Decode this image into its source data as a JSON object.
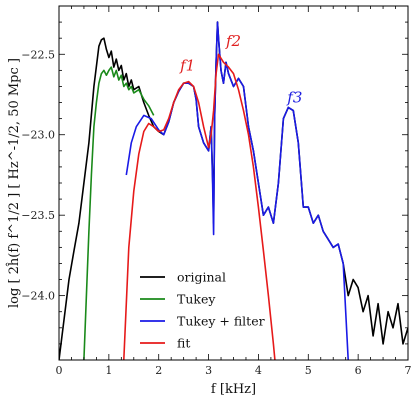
{
  "chart_data": {
    "type": "line",
    "xlabel": "f [kHz]",
    "ylabel": "log [ 2ĥ(f) f^1/2 ] [ Hz^-1/2, 50 Mpc ]",
    "xlim": [
      0,
      7
    ],
    "ylim": [
      -24.4,
      -22.2
    ],
    "xticks": [
      0,
      1,
      2,
      3,
      4,
      5,
      6,
      7
    ],
    "yticks": [
      -24.0,
      -23.5,
      -23.0,
      -22.5
    ],
    "xtick_labels": [
      "0",
      "1",
      "2",
      "3",
      "4",
      "5",
      "6",
      "7"
    ],
    "ytick_labels": [
      "−24.0",
      "−23.5",
      "−23.0",
      "−22.5"
    ],
    "grid": false,
    "legend_position": "bottom-center",
    "annotations": [
      {
        "text": "f1",
        "x": 2.58,
        "y": -22.6,
        "color": "#e02020"
      },
      {
        "text": "f2",
        "x": 3.5,
        "y": -22.45,
        "color": "#e02020"
      },
      {
        "text": "f3",
        "x": 4.73,
        "y": -22.8,
        "color": "#2020e0"
      }
    ],
    "series": [
      {
        "name": "original",
        "color": "#000000",
        "x": [
          0.0,
          0.1,
          0.2,
          0.3,
          0.4,
          0.5,
          0.6,
          0.7,
          0.8,
          0.85,
          0.9,
          0.95,
          1.0,
          1.05,
          1.1,
          1.15,
          1.2,
          1.25,
          1.3,
          1.35,
          1.4,
          1.45,
          1.5,
          1.6,
          1.7,
          1.8,
          1.9,
          2.0,
          2.1,
          2.2,
          2.3,
          2.4,
          2.5,
          2.6,
          2.7,
          2.75,
          2.8,
          2.9,
          3.0,
          3.05,
          3.08,
          3.1,
          3.12,
          3.15,
          3.18,
          3.2,
          3.25,
          3.3,
          3.35,
          3.4,
          3.5,
          3.6,
          3.7,
          3.8,
          3.9,
          4.0,
          4.1,
          4.2,
          4.3,
          4.4,
          4.5,
          4.6,
          4.7,
          4.8,
          4.9,
          5.0,
          5.1,
          5.2,
          5.3,
          5.4,
          5.5,
          5.6,
          5.7,
          5.8,
          5.9,
          6.0,
          6.1,
          6.2,
          6.3,
          6.4,
          6.5,
          6.6,
          6.7,
          6.8,
          6.9,
          7.0
        ],
        "values": [
          -24.4,
          -24.15,
          -23.9,
          -23.72,
          -23.55,
          -23.3,
          -23.05,
          -22.7,
          -22.45,
          -22.41,
          -22.4,
          -22.47,
          -22.52,
          -22.48,
          -22.58,
          -22.53,
          -22.6,
          -22.57,
          -22.66,
          -22.62,
          -22.7,
          -22.66,
          -22.72,
          -22.7,
          -22.8,
          -22.88,
          -22.95,
          -22.98,
          -23.0,
          -22.92,
          -22.8,
          -22.73,
          -22.68,
          -22.68,
          -22.7,
          -22.78,
          -22.95,
          -23.05,
          -23.1,
          -22.95,
          -23.25,
          -23.55,
          -22.9,
          -22.55,
          -22.3,
          -22.4,
          -22.6,
          -22.68,
          -22.55,
          -22.62,
          -22.7,
          -22.65,
          -22.7,
          -22.95,
          -23.1,
          -23.3,
          -23.5,
          -23.45,
          -23.55,
          -23.3,
          -22.9,
          -22.83,
          -22.85,
          -23.05,
          -23.45,
          -23.45,
          -23.55,
          -23.5,
          -23.6,
          -23.65,
          -23.7,
          -23.68,
          -23.8,
          -24.0,
          -23.9,
          -23.95,
          -24.1,
          -24.0,
          -24.25,
          -24.05,
          -24.3,
          -24.1,
          -24.2,
          -24.05,
          -24.3,
          -24.2
        ]
      },
      {
        "name": "Tukey",
        "color": "#1a8a1a",
        "x": [
          0.5,
          0.55,
          0.6,
          0.65,
          0.7,
          0.75,
          0.8,
          0.85,
          0.9,
          0.95,
          1.0,
          1.05,
          1.1,
          1.15,
          1.2,
          1.25,
          1.3,
          1.35,
          1.4,
          1.45,
          1.5,
          1.6,
          1.7,
          1.8,
          1.9
        ],
        "values": [
          -24.4,
          -24.0,
          -23.6,
          -23.25,
          -22.95,
          -22.8,
          -22.68,
          -22.62,
          -22.6,
          -22.63,
          -22.6,
          -22.58,
          -22.64,
          -22.6,
          -22.66,
          -22.63,
          -22.7,
          -22.68,
          -22.72,
          -22.7,
          -22.74,
          -22.72,
          -22.78,
          -22.82,
          -22.88
        ]
      },
      {
        "name": "Tukey + filter",
        "color": "#1a1ae6",
        "x": [
          1.35,
          1.45,
          1.55,
          1.7,
          1.85,
          2.0,
          2.1,
          2.2,
          2.3,
          2.4,
          2.5,
          2.6,
          2.7,
          2.75,
          2.8,
          2.9,
          3.0,
          3.05,
          3.08,
          3.1,
          3.12,
          3.15,
          3.18,
          3.2,
          3.25,
          3.3,
          3.35,
          3.4,
          3.5,
          3.6,
          3.7,
          3.8,
          3.9,
          4.0,
          4.1,
          4.2,
          4.3,
          4.4,
          4.5,
          4.6,
          4.7,
          4.8,
          4.9,
          5.0,
          5.1,
          5.2,
          5.3,
          5.4,
          5.5,
          5.6,
          5.7,
          5.8
        ],
        "values": [
          -23.25,
          -23.05,
          -22.95,
          -22.88,
          -22.9,
          -22.97,
          -23.0,
          -22.92,
          -22.8,
          -22.73,
          -22.68,
          -22.68,
          -22.7,
          -22.78,
          -22.95,
          -23.05,
          -23.1,
          -22.95,
          -23.3,
          -23.62,
          -22.9,
          -22.55,
          -22.3,
          -22.4,
          -22.6,
          -22.68,
          -22.55,
          -22.62,
          -22.7,
          -22.65,
          -22.7,
          -22.95,
          -23.1,
          -23.3,
          -23.5,
          -23.45,
          -23.55,
          -23.3,
          -22.9,
          -22.83,
          -22.85,
          -23.05,
          -23.45,
          -23.45,
          -23.55,
          -23.5,
          -23.6,
          -23.65,
          -23.7,
          -23.68,
          -23.8,
          -24.4
        ]
      },
      {
        "name": "fit",
        "color": "#e61a1a",
        "x": [
          1.3,
          1.4,
          1.5,
          1.6,
          1.7,
          1.8,
          1.9,
          2.0,
          2.1,
          2.2,
          2.3,
          2.4,
          2.5,
          2.6,
          2.7,
          2.8,
          2.9,
          3.0,
          3.05,
          3.1,
          3.15,
          3.2,
          3.3,
          3.4,
          3.5,
          3.6,
          3.7,
          3.8,
          3.9,
          4.0,
          4.1,
          4.2,
          4.25,
          4.3,
          4.33
        ],
        "values": [
          -24.4,
          -23.7,
          -23.35,
          -23.12,
          -22.98,
          -22.93,
          -22.95,
          -22.98,
          -22.97,
          -22.9,
          -22.8,
          -22.72,
          -22.68,
          -22.67,
          -22.7,
          -22.8,
          -22.95,
          -23.08,
          -23.0,
          -22.85,
          -22.62,
          -22.5,
          -22.55,
          -22.58,
          -22.62,
          -22.72,
          -22.85,
          -23.0,
          -23.2,
          -23.45,
          -23.72,
          -24.0,
          -24.15,
          -24.3,
          -24.4
        ]
      }
    ]
  }
}
